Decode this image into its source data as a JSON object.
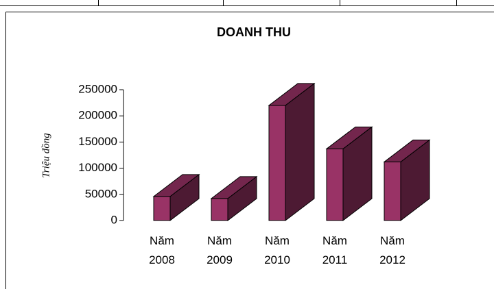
{
  "chart_data": {
    "type": "bar3d",
    "title": "DOANH THU",
    "ylabel": "Triệu đồng",
    "categories": [
      "Năm 2008",
      "Năm 2009",
      "Năm 2010",
      "Năm 2011",
      "Năm 2012"
    ],
    "values": [
      46000,
      42000,
      220000,
      137000,
      112000
    ],
    "color": "#993366",
    "ylim": [
      0,
      250000
    ],
    "yticks": [
      0,
      50000,
      100000,
      150000,
      200000,
      250000
    ]
  }
}
